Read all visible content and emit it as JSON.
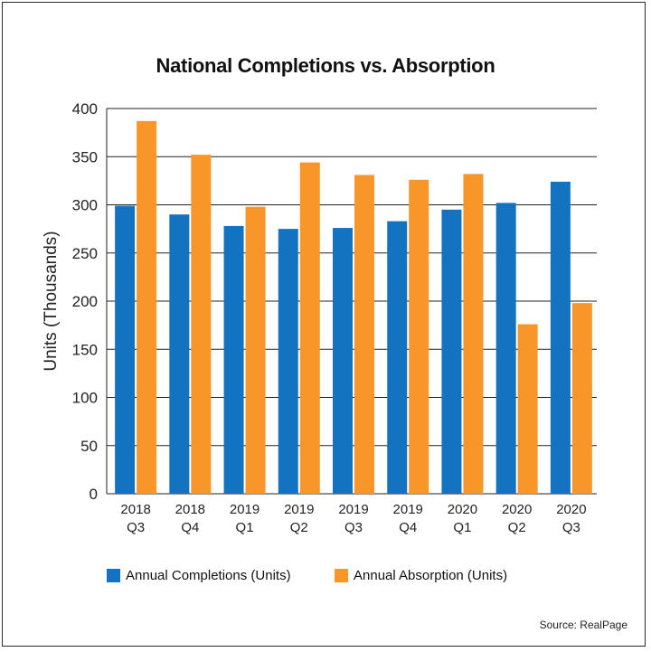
{
  "chart_data": {
    "type": "bar",
    "title": "National Completions vs. Absorption",
    "ylabel": "Units (Thousands)",
    "xlabel": "",
    "ylim": [
      0,
      400
    ],
    "yticks": [
      0,
      50,
      100,
      150,
      200,
      250,
      300,
      350,
      400
    ],
    "grid": "horizontal",
    "legend_position": "bottom",
    "categories": [
      {
        "year": "2018",
        "quarter": "Q3"
      },
      {
        "year": "2018",
        "quarter": "Q4"
      },
      {
        "year": "2019",
        "quarter": "Q1"
      },
      {
        "year": "2019",
        "quarter": "Q2"
      },
      {
        "year": "2019",
        "quarter": "Q3"
      },
      {
        "year": "2019",
        "quarter": "Q4"
      },
      {
        "year": "2020",
        "quarter": "Q1"
      },
      {
        "year": "2020",
        "quarter": "Q2"
      },
      {
        "year": "2020",
        "quarter": "Q3"
      }
    ],
    "series": [
      {
        "name": "Annual Completions (Units)",
        "color": "#1473c0",
        "values": [
          299,
          290,
          278,
          275,
          276,
          283,
          295,
          302,
          324
        ]
      },
      {
        "name": "Annual Absorption (Units)",
        "color": "#f8962a",
        "values": [
          387,
          352,
          298,
          344,
          331,
          326,
          332,
          176,
          198
        ]
      }
    ]
  },
  "source": "Source: RealPage"
}
